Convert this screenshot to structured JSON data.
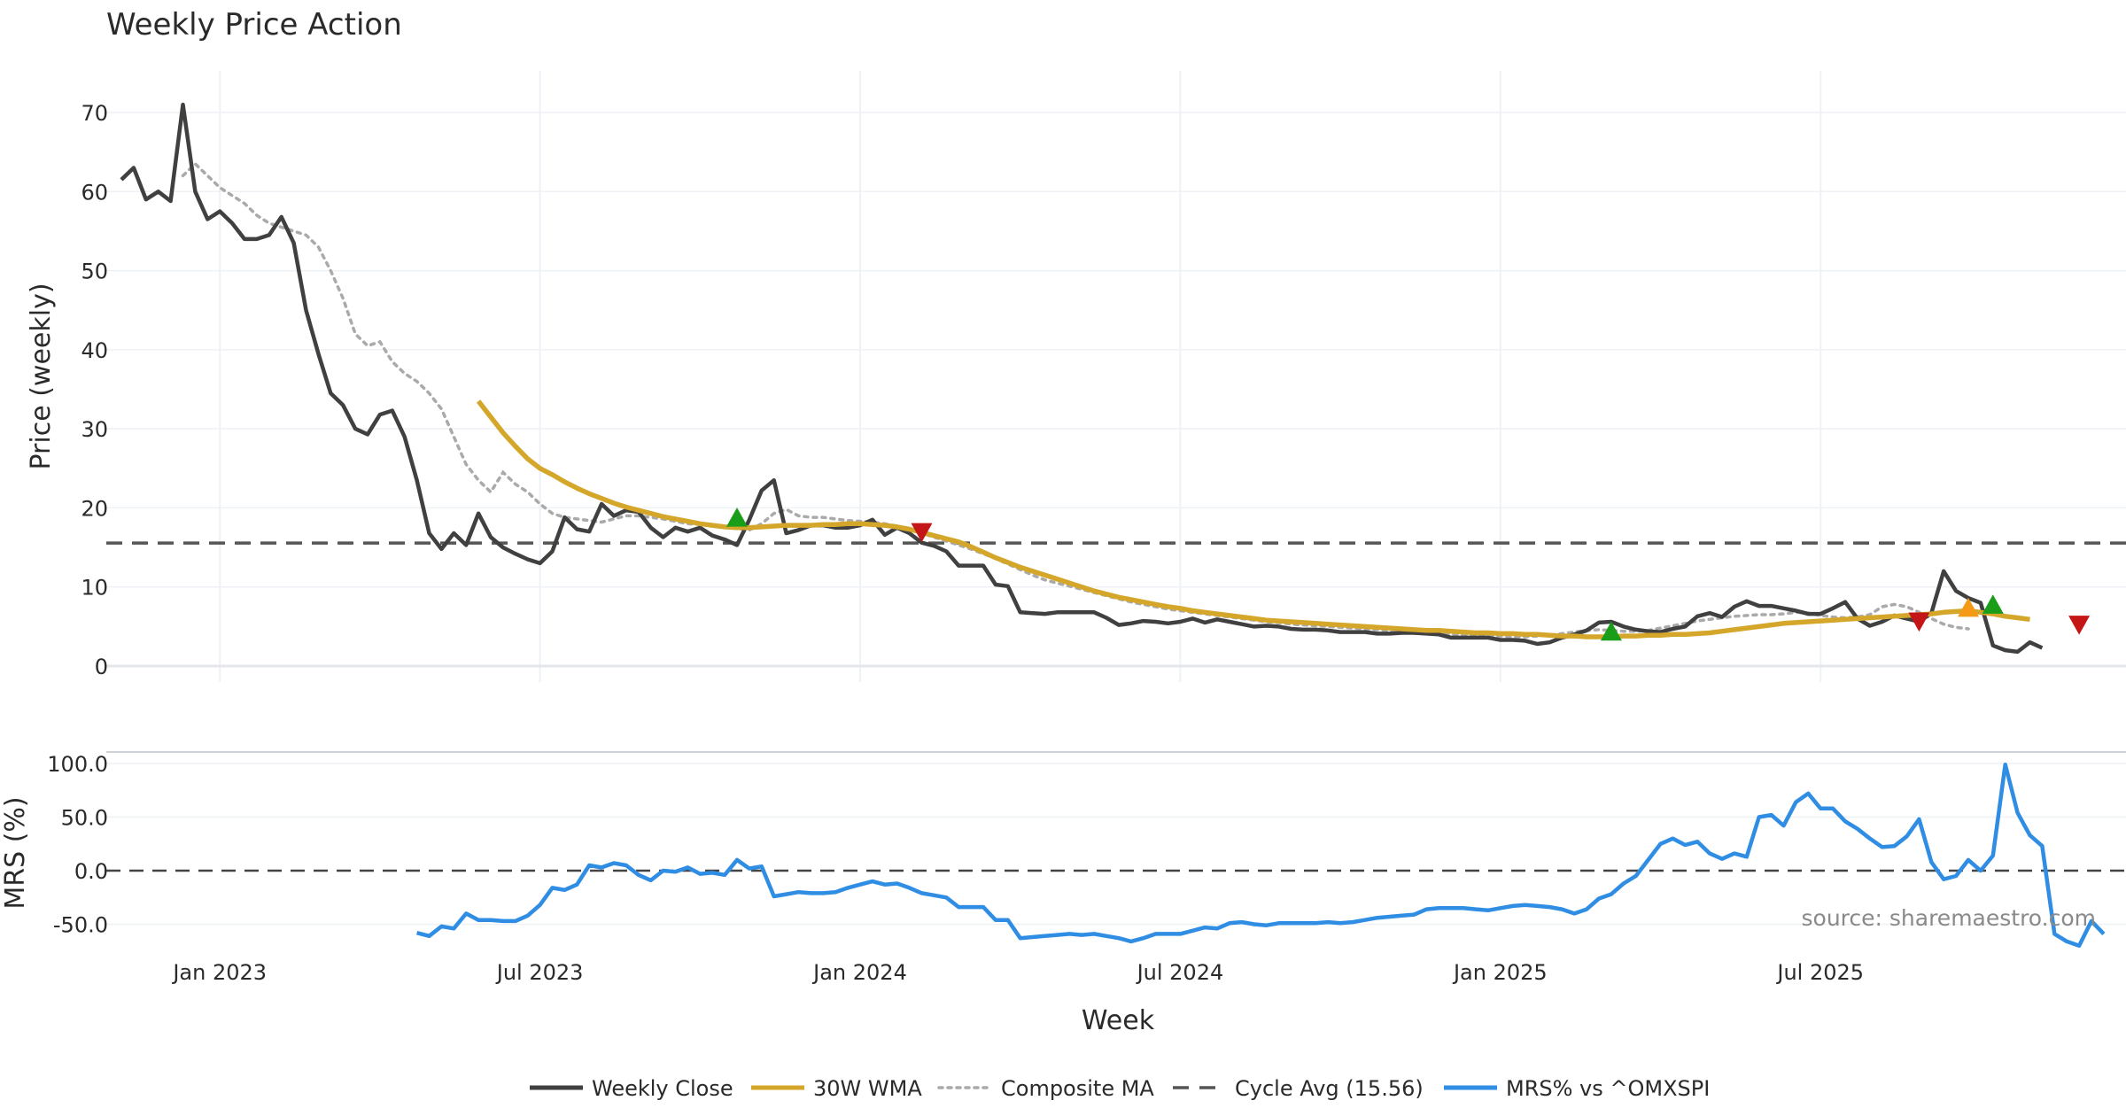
{
  "colors": {
    "close": "#404040",
    "wma": "#d4a62a",
    "composite": "#aaaaaa",
    "cycle": "#555555",
    "mrs": "#2f8de4",
    "grid": "#eef1f5",
    "buy": "#1a9e1a",
    "sell": "#c41616",
    "warn": "#f59a16"
  },
  "chart_data": [
    {
      "type": "line",
      "title": "Weekly Price Action",
      "ylabel": "Price (weekly)",
      "xlabel": "Week",
      "x_start": "2022-11-07",
      "week_step_days": 7,
      "ylim": [
        -2,
        76
      ],
      "yticks": [
        0,
        10,
        20,
        30,
        40,
        50,
        60,
        70
      ],
      "series": [
        {
          "name": "Weekly Close",
          "start_index": 0,
          "values": [
            61.5,
            63,
            59,
            60,
            58.8,
            71,
            60,
            56.5,
            57.5,
            56,
            54,
            54,
            54.5,
            56.8,
            53.5,
            45,
            39.5,
            34.5,
            33,
            30,
            29.3,
            31.8,
            32.3,
            29,
            23.5,
            16.8,
            14.8,
            16.8,
            15.3,
            19.3,
            16.3,
            15,
            14.2,
            13.5,
            13,
            14.5,
            18.8,
            17.3,
            17,
            20.5,
            19,
            19.7,
            19.5,
            17.5,
            16.3,
            17.5,
            17,
            17.5,
            16.5,
            16,
            15.3,
            18.5,
            22.2,
            23.5,
            16.8,
            17.2,
            17.8,
            17.8,
            17.5,
            17.5,
            17.8,
            18.5,
            16.6,
            17.5,
            16.8,
            15.6,
            15.2,
            14.5,
            12.7,
            12.7,
            12.7,
            10.3,
            10.1,
            6.8,
            6.7,
            6.6,
            6.8,
            6.8,
            6.8,
            6.8,
            6.1,
            5.2,
            5.4,
            5.7,
            5.6,
            5.4,
            5.6,
            6,
            5.5,
            5.9,
            5.6,
            5.3,
            5,
            5.1,
            5,
            4.7,
            4.6,
            4.6,
            4.5,
            4.3,
            4.3,
            4.3,
            4.1,
            4.1,
            4.2,
            4.2,
            4.1,
            4,
            3.6,
            3.6,
            3.6,
            3.6,
            3.3,
            3.3,
            3.2,
            2.8,
            3,
            3.6,
            4,
            4.5,
            5.5,
            5.6,
            5,
            4.6,
            4.4,
            4.3,
            4.7,
            5,
            6.3,
            6.7,
            6.2,
            7.5,
            8.2,
            7.6,
            7.6,
            7.3,
            7,
            6.6,
            6.6,
            7.3,
            8.1,
            6,
            5.1,
            5.6,
            6.4,
            6,
            5.6,
            6.7,
            12,
            9.5,
            8.6,
            8,
            2.6,
            2,
            1.8,
            3,
            2.3
          ]
        },
        {
          "name": "30W WMA",
          "start_index": 29,
          "values": [
            33.5,
            31.5,
            29.5,
            27.8,
            26.2,
            25,
            24.2,
            23.3,
            22.5,
            21.8,
            21.2,
            20.6,
            20.1,
            19.7,
            19.3,
            18.9,
            18.6,
            18.3,
            18.0,
            17.8,
            17.6,
            17.5,
            17.5,
            17.6,
            17.7,
            17.8,
            17.8,
            17.8,
            17.9,
            17.9,
            18.0,
            18.0,
            17.9,
            17.8,
            17.6,
            17.3,
            16.9,
            16.5,
            16.1,
            15.7,
            15.1,
            14.4,
            13.7,
            13.1,
            12.5,
            12.0,
            11.5,
            11.0,
            10.5,
            10.0,
            9.5,
            9.1,
            8.7,
            8.4,
            8.1,
            7.8,
            7.5,
            7.3,
            7.0,
            6.8,
            6.6,
            6.4,
            6.2,
            6.0,
            5.8,
            5.7,
            5.6,
            5.5,
            5.4,
            5.3,
            5.2,
            5.1,
            5.0,
            4.9,
            4.8,
            4.7,
            4.6,
            4.5,
            4.5,
            4.4,
            4.3,
            4.2,
            4.2,
            4.1,
            4.1,
            4.0,
            4.0,
            3.9,
            3.8,
            3.8,
            3.7,
            3.7,
            3.7,
            3.8,
            3.8,
            3.9,
            3.9,
            4.0,
            4.0,
            4.1,
            4.2,
            4.4,
            4.6,
            4.8,
            5.0,
            5.2,
            5.4,
            5.5,
            5.6,
            5.7,
            5.8,
            5.9,
            6.0,
            6.1,
            6.2,
            6.3,
            6.4,
            6.5,
            6.6,
            6.8,
            6.9,
            7.0,
            6.8,
            6.6,
            6.3,
            6.1,
            5.9
          ]
        },
        {
          "name": "Composite MA",
          "start_index": 5,
          "values": [
            62,
            63.5,
            62,
            60.5,
            59.5,
            58.5,
            57,
            56,
            55.5,
            55,
            54.5,
            53,
            50,
            46.5,
            42,
            40.5,
            41,
            38.5,
            37,
            36,
            34.5,
            32.5,
            29,
            25.5,
            23.5,
            22,
            24.5,
            23,
            22,
            20.5,
            19.3,
            18.8,
            18.6,
            18.4,
            18.2,
            18.6,
            19,
            19,
            18.8,
            18.6,
            18.3,
            18,
            17.9,
            17.8,
            17.6,
            17.4,
            17.2,
            18,
            19.3,
            19.8,
            19,
            18.8,
            18.8,
            18.6,
            18.4,
            18.3,
            18.2,
            18,
            17.7,
            17.3,
            16.8,
            16.3,
            15.8,
            15.3,
            14.8,
            14.2,
            13.6,
            12.9,
            12.2,
            11.5,
            10.9,
            10.5,
            10.1,
            9.7,
            9.3,
            8.9,
            8.5,
            8.1,
            7.8,
            7.5,
            7.2,
            7.0,
            6.8,
            6.6,
            6.4,
            6.2,
            6.0,
            5.8,
            5.6,
            5.5,
            5.3,
            5.2,
            5.1,
            5.0,
            4.9,
            4.8,
            4.7,
            4.6,
            4.5,
            4.4,
            4.3,
            4.2,
            4.1,
            4.0,
            3.9,
            3.9,
            3.8,
            3.8,
            3.7,
            3.7,
            3.8,
            3.9,
            4.1,
            4.3,
            4.5,
            4.6,
            4.5,
            4.4,
            4.4,
            4.5,
            4.8,
            5.1,
            5.4,
            5.7,
            5.9,
            6.1,
            6.3,
            6.4,
            6.5,
            6.5,
            6.6,
            6.8,
            6.7,
            6.4,
            6.2,
            6.1,
            6.2,
            6.5,
            7.5,
            7.8,
            7.5,
            6.8,
            6.0,
            5.3,
            4.9,
            4.7
          ]
        },
        {
          "name": "Cycle Avg (15.56)",
          "constant": 15.56
        }
      ],
      "markers": [
        {
          "type": "buy",
          "index": 50,
          "value": 18.7
        },
        {
          "type": "sell",
          "index": 65,
          "value": 17.0
        },
        {
          "type": "buy",
          "index": 121,
          "value": 4.3
        },
        {
          "type": "sell",
          "index": 146,
          "value": 5.7
        },
        {
          "type": "warn",
          "index": 150,
          "value": 7.3
        },
        {
          "type": "buy",
          "index": 152,
          "value": 7.7
        },
        {
          "type": "sell",
          "index": 159,
          "value": 5.3
        }
      ]
    },
    {
      "type": "line",
      "ylabel": "MRS (%)",
      "ylim": [
        -80,
        110
      ],
      "yticks": [
        100.0,
        50.0,
        0.0,
        -50.0
      ],
      "reference_line": 0,
      "series": [
        {
          "name": "MRS% vs ^OMXSPI",
          "start_index": 24,
          "values": [
            -58,
            -61,
            -52,
            -54,
            -40,
            -46,
            -46,
            -47,
            -47,
            -42,
            -32,
            -16,
            -18,
            -13,
            5,
            3,
            7,
            5,
            -4,
            -9,
            0,
            -1,
            3,
            -3,
            -2,
            -4,
            10,
            2,
            4,
            -24,
            -22,
            -20,
            -21,
            -21,
            -20,
            -16,
            -13,
            -10,
            -13,
            -12,
            -16,
            -21,
            -23,
            -25,
            -34,
            -34,
            -34,
            -46,
            -46,
            -63,
            -62,
            -61,
            -60,
            -59,
            -60,
            -59,
            -61,
            -63,
            -66,
            -63,
            -59,
            -59,
            -59,
            -56,
            -53,
            -54,
            -49,
            -48,
            -50,
            -51,
            -49,
            -49,
            -49,
            -49,
            -48,
            -49,
            -48,
            -46,
            -44,
            -43,
            -42,
            -41,
            -36,
            -35,
            -35,
            -35,
            -36,
            -37,
            -35,
            -33,
            -32,
            -33,
            -34,
            -36,
            -40,
            -36,
            -26,
            -22,
            -12,
            -5,
            10,
            25,
            30,
            24,
            27,
            16,
            11,
            16,
            13,
            50,
            52,
            42,
            64,
            72,
            58,
            58,
            46,
            39,
            30,
            22,
            23,
            32,
            48,
            8,
            -8,
            -5,
            10,
            0,
            14,
            99,
            54,
            33,
            23,
            -59,
            -66,
            -70,
            -47,
            -59
          ]
        }
      ],
      "xticks": [
        {
          "label": "Jan 2023",
          "index": 8
        },
        {
          "label": "Jul 2023",
          "index": 34
        },
        {
          "label": "Jan 2024",
          "index": 60
        },
        {
          "label": "Jul 2024",
          "index": 86
        },
        {
          "label": "Jan 2025",
          "index": 112
        },
        {
          "label": "Jul 2025",
          "index": 138
        }
      ]
    }
  ],
  "legend": [
    {
      "label": "Weekly Close",
      "style": "solid",
      "color_key": "close"
    },
    {
      "label": "30W WMA",
      "style": "solid",
      "color_key": "wma"
    },
    {
      "label": "Composite MA",
      "style": "dotted",
      "color_key": "composite"
    },
    {
      "label": "Cycle Avg (15.56)",
      "style": "dashed",
      "color_key": "cycle"
    },
    {
      "label": "MRS% vs ^OMXSPI",
      "style": "solid",
      "color_key": "mrs"
    }
  ],
  "source_note": "source: sharemaestro.com"
}
